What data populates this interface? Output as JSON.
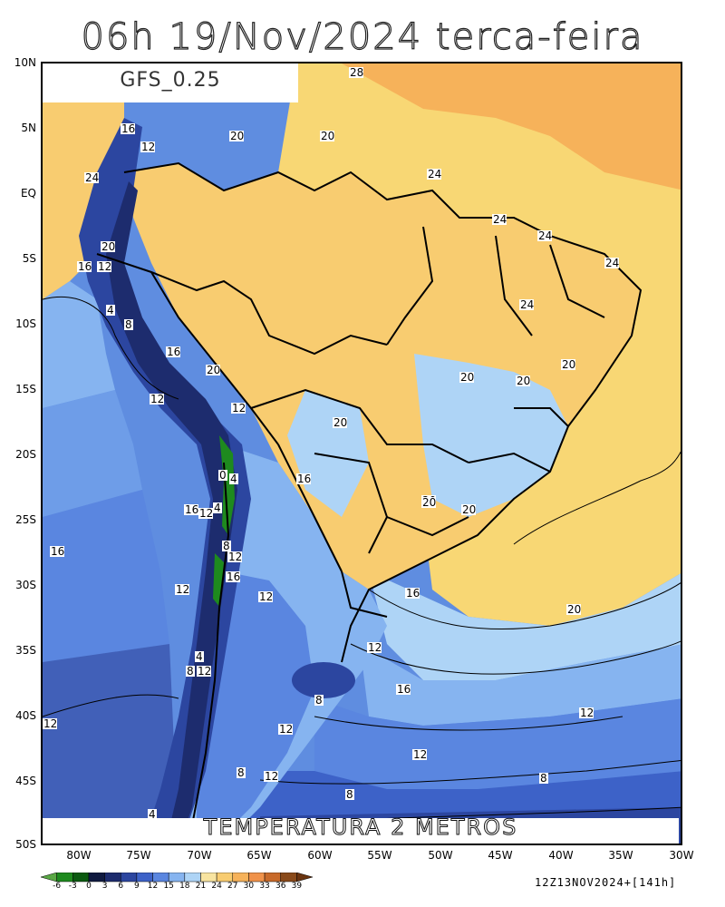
{
  "title": "06h  19/Nov/2024  terca-feira",
  "model": "GFS_0.25",
  "variable": "TEMPERATURA  2  METROS",
  "run_info": "12Z13NOV2024+[141h]",
  "lat_ticks": [
    "10N",
    "5N",
    "EQ",
    "5S",
    "10S",
    "15S",
    "20S",
    "25S",
    "30S",
    "35S",
    "40S",
    "45S",
    "50S"
  ],
  "lon_ticks": [
    "80W",
    "75W",
    "70W",
    "65W",
    "60W",
    "55W",
    "50W",
    "45W",
    "40W",
    "35W",
    "30W"
  ],
  "colorbar": {
    "ticks": [
      "-6",
      "-3",
      "0",
      "3",
      "6",
      "9",
      "12",
      "15",
      "18",
      "21",
      "24",
      "27",
      "30",
      "33",
      "36",
      "39"
    ],
    "colors": [
      "#5aa845",
      "#1e8a1e",
      "#0b5a10",
      "#101a40",
      "#1d2c6e",
      "#2c46a0",
      "#3d62c8",
      "#5a86e0",
      "#86b4f0",
      "#aed4f6",
      "#f8e4a0",
      "#f8cc70",
      "#f6b25a",
      "#f0924a",
      "#c86a2a",
      "#8a4a1a",
      "#6a3410"
    ]
  },
  "contour_labels": [
    "28",
    "16",
    "12",
    "20",
    "20",
    "24",
    "24",
    "24",
    "24",
    "24",
    "20",
    "16",
    "12",
    "4",
    "8",
    "16",
    "20",
    "12",
    "24",
    "20",
    "20",
    "20",
    "20",
    "20",
    "12",
    "0",
    "4",
    "16",
    "16",
    "12",
    "4",
    "8",
    "12",
    "16",
    "20",
    "20",
    "12",
    "16",
    "12",
    "20",
    "16",
    "12",
    "4",
    "8",
    "12",
    "16",
    "8",
    "12",
    "12",
    "12",
    "8",
    "12",
    "8",
    "12",
    "8",
    "4"
  ]
}
